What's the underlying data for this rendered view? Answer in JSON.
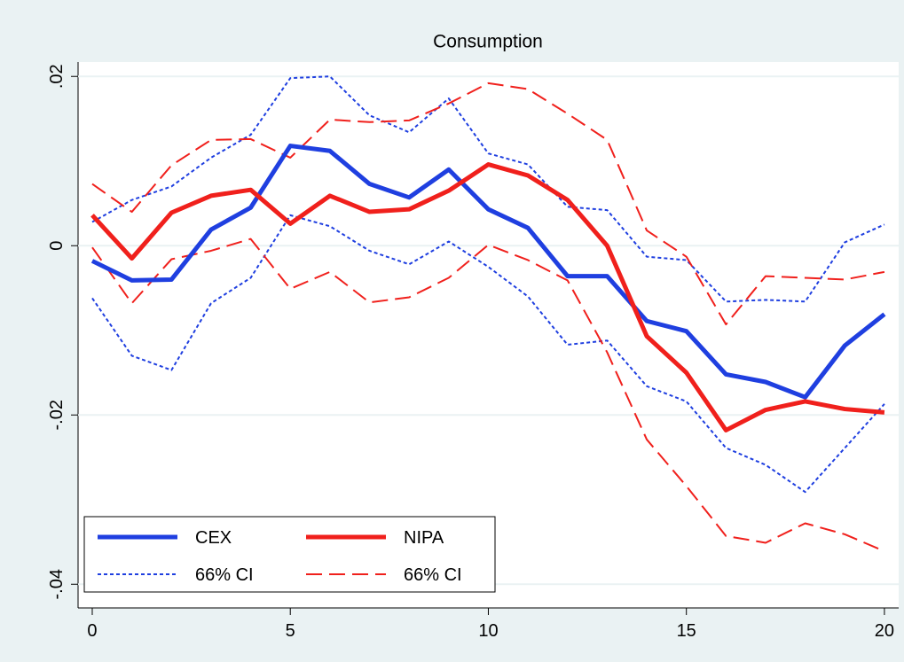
{
  "chart_data": {
    "type": "line",
    "title": "Consumption",
    "x": [
      0,
      1,
      2,
      3,
      4,
      5,
      6,
      7,
      8,
      9,
      10,
      11,
      12,
      13,
      14,
      15,
      16,
      17,
      18,
      19,
      20
    ],
    "xlim": [
      -0.358,
      20.36
    ],
    "xticks": [
      0,
      5,
      10,
      15,
      20
    ],
    "ylim": [
      -0.0428,
      0.0217
    ],
    "yticks": [
      {
        "value": 0.02,
        "label": ".02"
      },
      0,
      {
        "value": -0.02,
        "label": "-.02"
      },
      {
        "value": -0.04,
        "label": "-.04"
      }
    ],
    "grid": true,
    "series": [
      {
        "name": "CEX",
        "color": "#1f3fe0",
        "style": "solid",
        "values": [
          -0.0018,
          -0.0041,
          -0.004,
          0.0019,
          0.0045,
          0.0118,
          0.0112,
          0.0073,
          0.0057,
          0.009,
          0.0043,
          0.0021,
          -0.0036,
          -0.0036,
          -0.0089,
          -0.0101,
          -0.0152,
          -0.0161,
          -0.0179,
          -0.0118,
          -0.0081
        ]
      },
      {
        "name": "NIPA",
        "color": "#f0201c",
        "style": "solid",
        "values": [
          0.0036,
          -0.0015,
          0.0039,
          0.0059,
          0.0066,
          0.0026,
          0.0059,
          0.004,
          0.0043,
          0.0065,
          0.0096,
          0.0083,
          0.0054,
          0.0,
          -0.0107,
          -0.015,
          -0.0218,
          -0.0194,
          -0.0184,
          -0.0193,
          -0.0197
        ]
      },
      {
        "name": "66% CI",
        "color": "#1f3fe0",
        "style": "dot",
        "upper": [
          0.0028,
          0.0054,
          0.007,
          0.0104,
          0.0131,
          0.0198,
          0.02,
          0.0154,
          0.0134,
          0.0174,
          0.0109,
          0.0096,
          0.0046,
          0.0042,
          -0.0013,
          -0.0017,
          -0.0066,
          -0.0064,
          -0.0066,
          0.0004,
          0.0025
        ],
        "lower": [
          -0.0062,
          -0.013,
          -0.0147,
          -0.0068,
          -0.0038,
          0.0036,
          0.0023,
          -0.0006,
          -0.0022,
          0.0005,
          -0.0025,
          -0.006,
          -0.0117,
          -0.0112,
          -0.0166,
          -0.0184,
          -0.0239,
          -0.0259,
          -0.0291,
          -0.0239,
          -0.0187
        ]
      },
      {
        "name": "66% CI",
        "color": "#f0201c",
        "style": "dash",
        "upper": [
          0.0073,
          0.004,
          0.0095,
          0.0125,
          0.0126,
          0.0104,
          0.0149,
          0.0146,
          0.0148,
          0.0168,
          0.0192,
          0.0185,
          0.0156,
          0.0125,
          0.0018,
          -0.0013,
          -0.0093,
          -0.0036,
          -0.0038,
          -0.004,
          -0.0031
        ],
        "lower": [
          -0.0002,
          -0.0068,
          -0.0016,
          -0.0006,
          0.0008,
          -0.0051,
          -0.0031,
          -0.0067,
          -0.0061,
          -0.0038,
          0.0001,
          -0.0017,
          -0.0041,
          -0.0126,
          -0.0229,
          -0.0284,
          -0.0343,
          -0.0351,
          -0.0328,
          -0.0341,
          -0.0361
        ]
      }
    ]
  }
}
